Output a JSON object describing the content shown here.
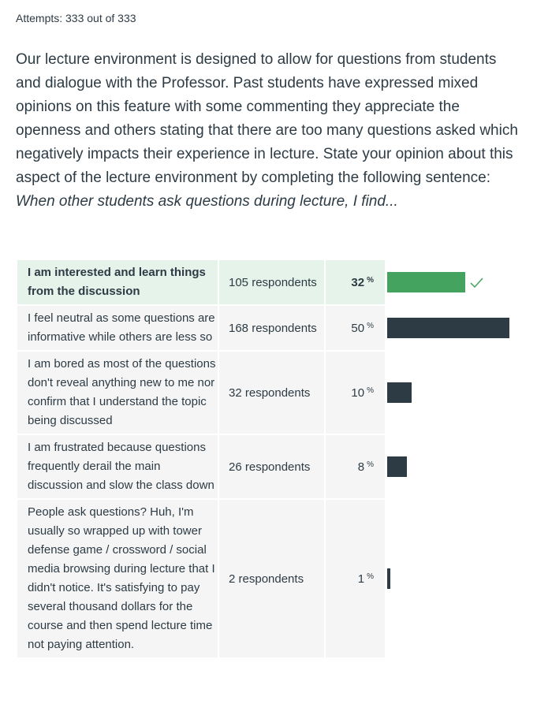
{
  "attempts": "Attempts: 333 out of 333",
  "question": {
    "body": "Our lecture environment is designed to allow for questions from students and dialogue with the Professor.  Past students have expressed mixed opinions on this feature with some commenting they appreciate the openness and others stating that there are too many questions asked which negatively impacts their experience in lecture.  State your opinion about this aspect of the lecture environment by completing the following sentence:",
    "prompt": "When other students ask questions during lecture, I find..."
  },
  "answers": [
    {
      "label": "I am interested and learn things from the discussion",
      "count": "105 respondents",
      "percent": "32",
      "percent_value": 32,
      "correct": true
    },
    {
      "label": "I feel neutral as some questions are informative while others are less so",
      "count": "168 respondents",
      "percent": "50",
      "percent_value": 50,
      "correct": false
    },
    {
      "label": "I am bored as most of the questions don't reveal anything new to me nor confirm that I understand the topic being discussed",
      "count": "32 respondents",
      "percent": "10",
      "percent_value": 10,
      "correct": false
    },
    {
      "label": "I am frustrated because questions frequently derail the main discussion and slow the class down",
      "count": "26 respondents",
      "percent": "8",
      "percent_value": 8,
      "correct": false
    },
    {
      "label": "People ask questions? Huh, I'm usually so wrapped up with tower defense game / crossword / social media browsing during lecture that I didn't notice. It's satisfying to pay several thousand dollars for the course and then spend lecture time not paying attention.",
      "count": "2 respondents",
      "percent": "1",
      "percent_value": 1,
      "correct": false
    }
  ],
  "percent_symbol": "%",
  "colors": {
    "text": "#2d3b45",
    "bar": "#2d3b45",
    "correct_bar": "#44a35f",
    "correct_bg": "#e5f3ea",
    "cell_bg": "#f5f5f5"
  },
  "icons": {
    "correct": "check-icon"
  }
}
